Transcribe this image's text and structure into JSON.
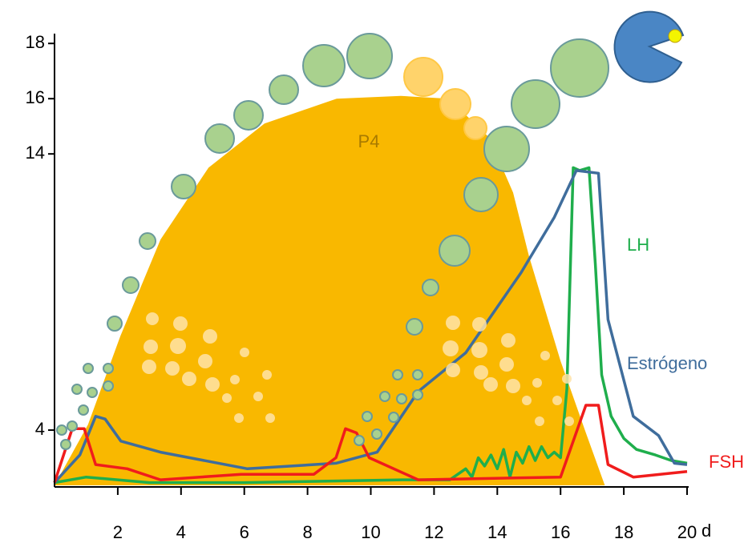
{
  "chart_data": {
    "type": "line",
    "x_label": "d",
    "xlim": [
      0,
      20
    ],
    "xticks": [
      2,
      4,
      6,
      8,
      10,
      12,
      14,
      16,
      18,
      20
    ],
    "ylim": [
      2,
      18.5
    ],
    "yticks": [
      4,
      14,
      16,
      18
    ],
    "series": [
      {
        "name": "P4",
        "color": "#f9b800",
        "fill": true,
        "x": [
          0,
          1.06,
          2.08,
          3.35,
          4.87,
          6.64,
          8.92,
          10.95,
          12.47,
          13.74,
          14.5,
          15.0,
          16.0,
          16.8,
          17.4
        ],
        "values": [
          2,
          4.2,
          7.4,
          10.9,
          13.5,
          15.1,
          16,
          16.1,
          16,
          14.6,
          12.6,
          10.3,
          6.5,
          3.9,
          2
        ]
      },
      {
        "name": "LH",
        "color": "#1fae4c",
        "fill": false,
        "x": [
          0,
          1,
          3,
          6,
          11,
          12.5,
          13,
          13.2,
          13.4,
          13.6,
          13.8,
          14.0,
          14.2,
          14.4,
          14.6,
          14.8,
          15.0,
          15.2,
          15.4,
          15.6,
          15.8,
          16.0,
          16.2,
          16.4,
          16.6,
          16.9,
          17.1,
          17.3,
          17.6,
          18.0,
          18.4,
          19.0,
          19.5,
          20
        ],
        "values": [
          2.1,
          2.3,
          2.1,
          2.1,
          2.2,
          2.2,
          2.6,
          2.3,
          3.0,
          2.7,
          3.1,
          2.6,
          3.3,
          2.3,
          3.2,
          2.8,
          3.4,
          2.9,
          3.4,
          3.0,
          3.2,
          3.0,
          5.5,
          13.5,
          13.4,
          13.5,
          10,
          6,
          4.5,
          3.7,
          3.3,
          3.1,
          2.9,
          2.8
        ]
      },
      {
        "name": "Estrógeno",
        "color": "#3f6d9c",
        "fill": false,
        "x": [
          0,
          0.8,
          1.3,
          1.6,
          2.1,
          3.35,
          6.1,
          8.9,
          10.2,
          11.5,
          13,
          14.75,
          15.8,
          16.5,
          17.2,
          17.5,
          18.3,
          19.1,
          19.6,
          20
        ],
        "values": [
          2.1,
          3.1,
          4.5,
          4.4,
          3.6,
          3.2,
          2.6,
          2.8,
          3.2,
          5.4,
          6.8,
          9.7,
          11.7,
          13.4,
          13.3,
          8,
          4.5,
          3.8,
          2.8,
          2.75
        ]
      },
      {
        "name": "FSH",
        "color": "#f01c1c",
        "fill": false,
        "x": [
          0,
          0.56,
          0.94,
          1.3,
          2.3,
          3.35,
          5.9,
          8.2,
          8.9,
          9.2,
          9.55,
          9.95,
          11.5,
          16,
          16.8,
          17.2,
          17.5,
          18.3,
          20
        ],
        "values": [
          2.1,
          4.05,
          4.05,
          2.75,
          2.6,
          2.2,
          2.4,
          2.4,
          3,
          4.05,
          3.9,
          3,
          2.2,
          2.3,
          4.9,
          4.9,
          2.75,
          2.3,
          2.5
        ]
      }
    ]
  }
}
